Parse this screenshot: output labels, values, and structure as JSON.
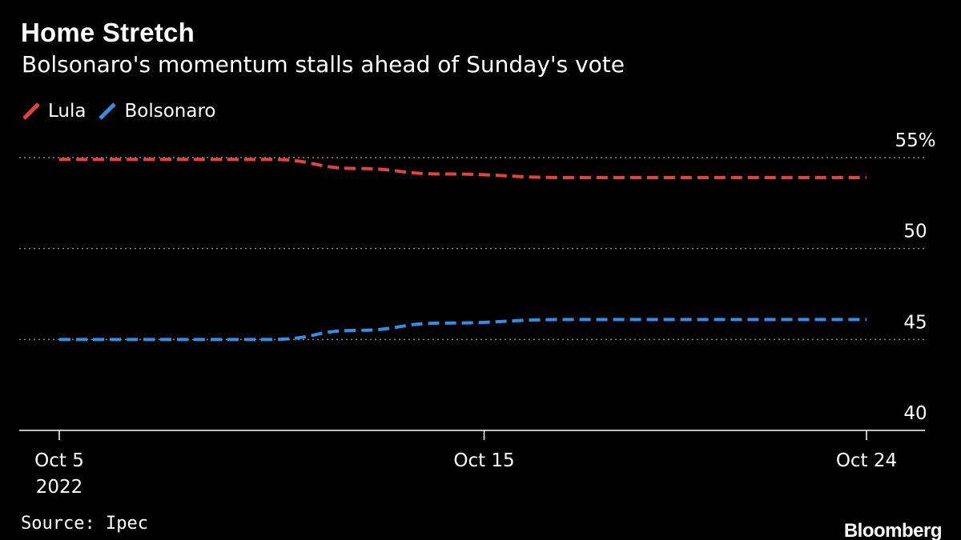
{
  "title": "Home Stretch",
  "subtitle": "Bolsonaro's momentum stalls ahead of Sunday's vote",
  "source": "Source: Ipec",
  "brand": "Bloomberg",
  "colors": {
    "lula": "#e8413c",
    "bolsonaro": "#2f8fea",
    "grid": "#8a8a8a",
    "axis": "#ffffff"
  },
  "chart_data": {
    "type": "line",
    "title": "Home Stretch",
    "subtitle": "Bolsonaro's momentum stalls ahead of Sunday's vote",
    "x": [
      "2022-10-05",
      "2022-10-10",
      "2022-10-12",
      "2022-10-14",
      "2022-10-17",
      "2022-10-24"
    ],
    "x_tick_labels": [
      {
        "date": "2022-10-05",
        "label": "Oct 5",
        "sublabel": "2022"
      },
      {
        "date": "2022-10-15",
        "label": "Oct 15",
        "sublabel": ""
      },
      {
        "date": "2022-10-24",
        "label": "Oct 24",
        "sublabel": ""
      }
    ],
    "xlim": [
      "2022-10-05",
      "2022-10-24"
    ],
    "ylim": [
      40,
      55
    ],
    "y_ticks": [
      40,
      45,
      50,
      55
    ],
    "y_tick_labels": [
      "40",
      "45",
      "50",
      "55%"
    ],
    "y_axis_side": "right",
    "grid": true,
    "legend": "top-left",
    "series": [
      {
        "name": "Lula",
        "color": "#e8413c",
        "dash": true,
        "values": [
          54.9,
          54.9,
          54.4,
          54.1,
          53.9,
          53.9
        ]
      },
      {
        "name": "Bolsonaro",
        "color": "#2f8fea",
        "dash": true,
        "values": [
          45.0,
          45.0,
          45.5,
          45.9,
          46.1,
          46.1
        ]
      }
    ]
  }
}
